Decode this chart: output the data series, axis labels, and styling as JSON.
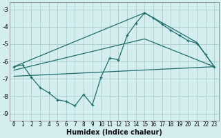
{
  "xlabel": "Humidex (Indice chaleur)",
  "background_color": "#d4eef0",
  "grid_color": "#aacdd0",
  "line_color": "#1e6b6b",
  "xlim": [
    -0.5,
    23.5
  ],
  "ylim": [
    -9.4,
    -2.6
  ],
  "yticks": [
    -9,
    -8,
    -7,
    -6,
    -5,
    -4,
    -3
  ],
  "xticks": [
    0,
    1,
    2,
    3,
    4,
    5,
    6,
    7,
    8,
    9,
    10,
    11,
    12,
    13,
    14,
    15,
    16,
    17,
    18,
    19,
    20,
    21,
    22,
    23
  ],
  "series1_x": [
    0,
    1,
    2,
    3,
    4,
    5,
    6,
    7,
    8,
    9,
    10,
    11,
    12,
    13,
    14,
    15,
    16,
    17,
    18,
    19,
    20,
    21,
    22,
    23
  ],
  "series1_y": [
    -6.3,
    -6.2,
    -6.9,
    -7.5,
    -7.8,
    -8.2,
    -8.3,
    -8.55,
    -7.9,
    -8.5,
    -6.9,
    -5.8,
    -5.9,
    -4.5,
    -3.8,
    -3.2,
    -3.5,
    -3.85,
    -4.2,
    -4.5,
    -4.8,
    -4.95,
    -5.6,
    -6.3
  ],
  "series2_x": [
    0,
    15,
    21,
    23
  ],
  "series2_y": [
    -6.3,
    -3.2,
    -4.9,
    -6.3
  ],
  "series3_x": [
    0,
    15,
    23
  ],
  "series3_y": [
    -6.5,
    -4.7,
    -6.3
  ],
  "series4_x": [
    0,
    23
  ],
  "series4_y": [
    -6.85,
    -6.3
  ]
}
